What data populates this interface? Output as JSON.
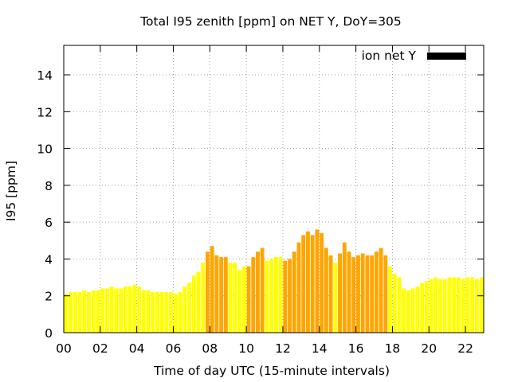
{
  "chart_data": {
    "type": "bar",
    "title": "Total I95 zenith [ppm] on NET Y, DoY=305",
    "xlabel": "Time of day UTC (15-minute intervals)",
    "ylabel": "I95 [ppm]",
    "xlim": [
      0,
      23
    ],
    "ylim": [
      0,
      15.6
    ],
    "x_ticks": [
      "00",
      "02",
      "04",
      "06",
      "08",
      "10",
      "12",
      "14",
      "16",
      "18",
      "20",
      "22"
    ],
    "y_ticks": [
      "0",
      "2",
      "4",
      "6",
      "8",
      "10",
      "12",
      "14"
    ],
    "grid": true,
    "legend": {
      "label": "ion net Y",
      "position": "top-right",
      "color": "#000000"
    },
    "level_colors": {
      "low": "#ffff00",
      "moderate": "#ffa500"
    },
    "x_hours": [
      0.125,
      0.375,
      0.625,
      0.875,
      1.125,
      1.375,
      1.625,
      1.875,
      2.125,
      2.375,
      2.625,
      2.875,
      3.125,
      3.375,
      3.625,
      3.875,
      4.125,
      4.375,
      4.625,
      4.875,
      5.125,
      5.375,
      5.625,
      5.875,
      6.125,
      6.375,
      6.625,
      6.875,
      7.125,
      7.375,
      7.625,
      7.875,
      8.125,
      8.375,
      8.625,
      8.875,
      9.125,
      9.375,
      9.625,
      9.875,
      10.125,
      10.375,
      10.625,
      10.875,
      11.125,
      11.375,
      11.625,
      11.875,
      12.125,
      12.375,
      12.625,
      12.875,
      13.125,
      13.375,
      13.625,
      13.875,
      14.125,
      14.375,
      14.625,
      14.875,
      15.125,
      15.375,
      15.625,
      15.875,
      16.125,
      16.375,
      16.625,
      16.875,
      17.125,
      17.375,
      17.625,
      17.875,
      18.125,
      18.375,
      18.625,
      18.875,
      19.125,
      19.375,
      19.625,
      19.875,
      20.125,
      20.375,
      20.625,
      20.875,
      21.125,
      21.375,
      21.625,
      21.875,
      22.125,
      22.375,
      22.625,
      22.875
    ],
    "values": [
      2.1,
      2.2,
      2.2,
      2.2,
      2.3,
      2.2,
      2.3,
      2.3,
      2.4,
      2.4,
      2.5,
      2.4,
      2.4,
      2.5,
      2.5,
      2.6,
      2.5,
      2.3,
      2.3,
      2.2,
      2.2,
      2.2,
      2.2,
      2.2,
      2.1,
      2.2,
      2.5,
      2.7,
      3.1,
      3.3,
      3.8,
      4.4,
      4.7,
      4.2,
      4.1,
      4.1,
      3.8,
      3.8,
      3.4,
      3.6,
      3.6,
      4.1,
      4.4,
      4.6,
      3.9,
      4.0,
      4.1,
      4.1,
      3.9,
      4.0,
      4.4,
      4.9,
      5.3,
      5.5,
      5.3,
      5.6,
      5.4,
      4.6,
      4.2,
      3.8,
      4.3,
      4.9,
      4.4,
      4.1,
      4.2,
      4.3,
      4.2,
      4.2,
      4.4,
      4.6,
      4.2,
      3.6,
      3.2,
      3.0,
      2.4,
      2.3,
      2.4,
      2.5,
      2.7,
      2.8,
      2.9,
      3.0,
      2.9,
      2.9,
      3.0,
      3.0,
      3.0,
      2.9,
      3.0,
      3.0,
      2.9,
      3.0
    ],
    "levels": [
      "low",
      "low",
      "low",
      "low",
      "low",
      "low",
      "low",
      "low",
      "low",
      "low",
      "low",
      "low",
      "low",
      "low",
      "low",
      "low",
      "low",
      "low",
      "low",
      "low",
      "low",
      "low",
      "low",
      "low",
      "low",
      "low",
      "low",
      "low",
      "low",
      "low",
      "low",
      "moderate",
      "moderate",
      "moderate",
      "moderate",
      "moderate",
      "low",
      "low",
      "low",
      "low",
      "moderate",
      "moderate",
      "moderate",
      "moderate",
      "low",
      "low",
      "low",
      "low",
      "moderate",
      "moderate",
      "moderate",
      "moderate",
      "moderate",
      "moderate",
      "moderate",
      "moderate",
      "moderate",
      "moderate",
      "moderate",
      "low",
      "moderate",
      "moderate",
      "moderate",
      "moderate",
      "moderate",
      "moderate",
      "moderate",
      "moderate",
      "moderate",
      "moderate",
      "moderate",
      "low",
      "low",
      "low",
      "low",
      "low",
      "low",
      "low",
      "low",
      "low",
      "low",
      "low",
      "low",
      "low",
      "low",
      "low",
      "low",
      "low",
      "low",
      "low",
      "low",
      "low"
    ]
  }
}
